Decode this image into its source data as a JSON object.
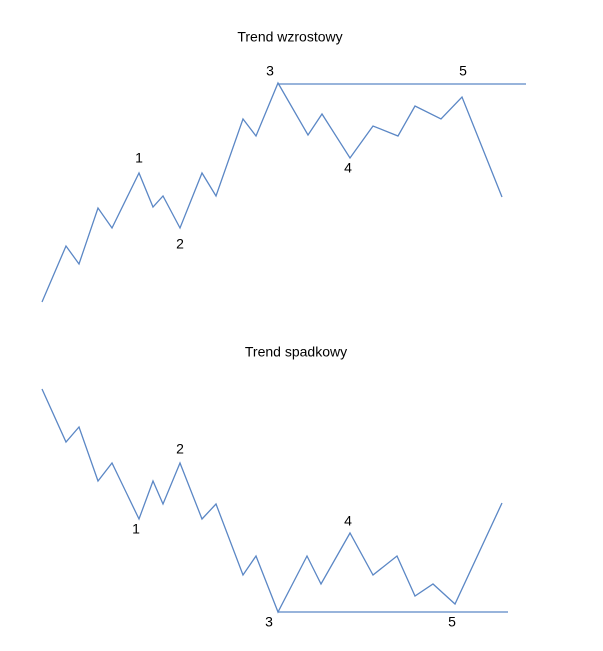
{
  "diagrams": [
    {
      "title": "Trend wzrostowy",
      "labels": [
        "1",
        "2",
        "3",
        "4",
        "5"
      ]
    },
    {
      "title": "Trend spadkowy",
      "labels": [
        "1",
        "2",
        "3",
        "4",
        "5"
      ]
    }
  ]
}
